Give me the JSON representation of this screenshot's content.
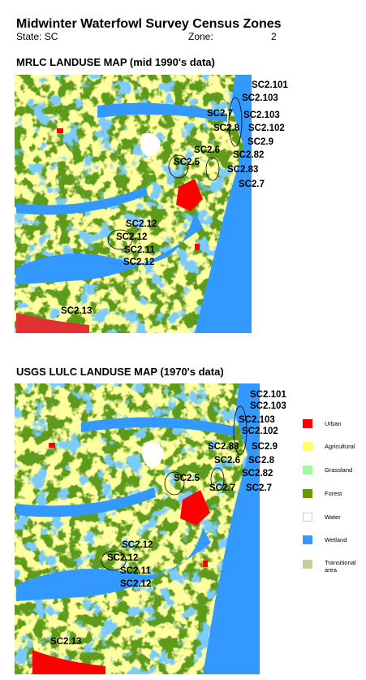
{
  "header": {
    "title": "Midwinter Waterfowl Survey Census Zones",
    "state": "State: SC",
    "zone_label": "Zone:",
    "zone_value": "2"
  },
  "maps": [
    {
      "title": "MRLC LANDUSE MAP (mid 1990's data)",
      "zone_labels": [
        "SC2.101",
        "SC2.103",
        "SC2.7",
        "SC2.103",
        "SC2.8",
        "SC2.102",
        "SC2.9",
        "SC2.6",
        "SC2.82",
        "SC2.5",
        "SC2.83",
        "SC2.7",
        "SC2.12",
        "SC2.12",
        "SC2.11",
        "SC2.12",
        "SC2.13"
      ]
    },
    {
      "title": "USGS LULC LANDUSE MAP (1970's data)",
      "zone_labels": [
        "SC2.101",
        "SC2.103",
        "SC2.103",
        "SC2.102",
        "SC2.83",
        "SC2.9",
        "SC2.6",
        "SC2.8",
        "SC2.82",
        "SC2.5",
        "SC2.7",
        "SC2.7",
        "SC2.12",
        "SC2.12",
        "SC2.11",
        "SC2.12",
        "SC2.13"
      ]
    }
  ],
  "legend": [
    "Urban",
    "Agricultural",
    "Grassland",
    "Forest",
    "Water",
    "Wetland",
    "Transitional area"
  ]
}
